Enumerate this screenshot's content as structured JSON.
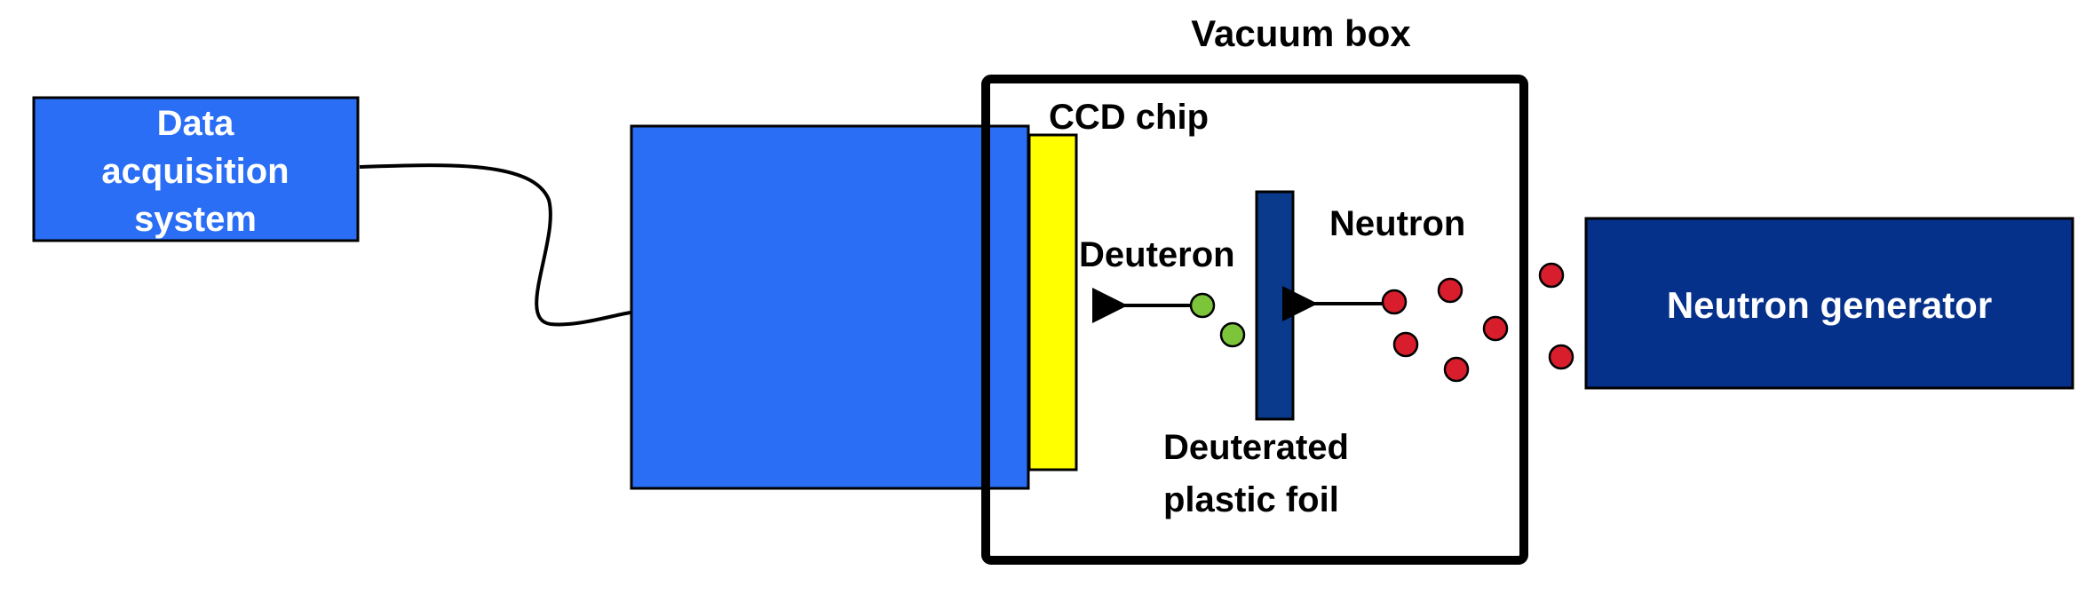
{
  "labels": {
    "daq_line1": "Data",
    "daq_line2": "acquisition",
    "daq_line3": "system",
    "vacuum_box": "Vacuum box",
    "ccd_chip": "CCD chip",
    "deuteron": "Deuteron",
    "neutron": "Neutron",
    "foil_line1": "Deuterated",
    "foil_line2": "plastic foil",
    "neutron_generator": "Neutron generator"
  },
  "colors": {
    "daq_fill": "#2a6ef5",
    "camera_fill": "#2a6ef5",
    "ccd_fill": "#ffff00",
    "foil_fill": "#0a3a8c",
    "generator_fill": "#06318a",
    "neutron_particle": "#d81e2c",
    "deuteron_particle": "#7cc43a",
    "outline": "#000000"
  },
  "icons": {
    "neutron_particles": "red-circle",
    "deuteron_particles": "green-circle",
    "arrows": "left-arrow"
  }
}
